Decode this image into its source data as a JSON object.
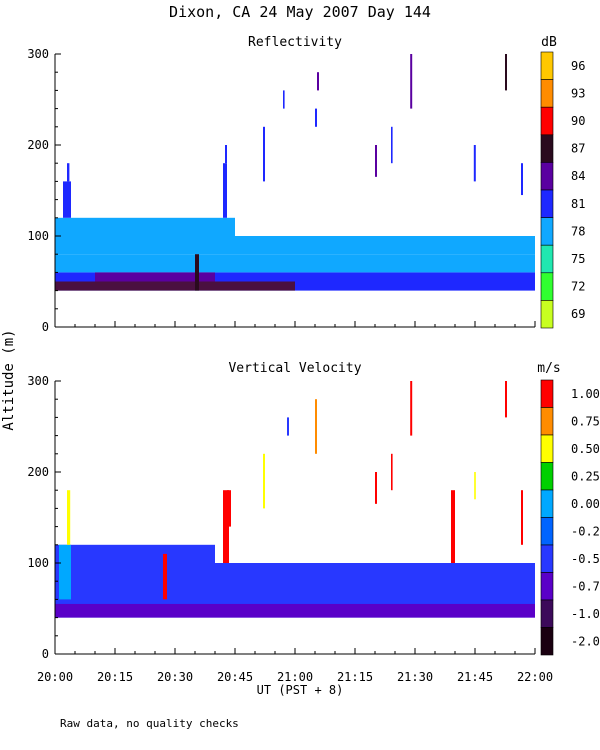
{
  "title": "Dixon, CA 24 May 2007  Day 144",
  "footnote": "Raw data, no quality checks",
  "chart_data": [
    {
      "type": "heatmap",
      "title": "Reflectivity",
      "xlabel": "UT  (PST + 8)",
      "ylabel": "Altitude (m)",
      "xlim": [
        0,
        120
      ],
      "ylim": [
        0,
        300
      ],
      "x_ticks": [
        0,
        15,
        30,
        45,
        60,
        75,
        90,
        105,
        120
      ],
      "x_tick_labels": [
        "20:00",
        "20:15",
        "20:30",
        "20:45",
        "21:00",
        "21:15",
        "21:30",
        "21:45",
        "22:00"
      ],
      "y_ticks": [
        0,
        100,
        200,
        300
      ],
      "y_tick_labels": [
        "0",
        "100",
        "200",
        "300"
      ],
      "colorbar": {
        "unit": "dB",
        "labels": [
          "96",
          "93",
          "90",
          "87",
          "84",
          "81",
          "78",
          "75",
          "72",
          "69"
        ],
        "colors": [
          "#ffc800",
          "#ff8c00",
          "#ff0000",
          "#2a0a1e",
          "#5a00a0",
          "#1e28ff",
          "#10a8ff",
          "#20e8b0",
          "#30ff30",
          "#c8ff20"
        ]
      },
      "cells": [
        {
          "x0": 0,
          "x1": 120,
          "y0": 40,
          "y1": 60,
          "color": "#1e28ff"
        },
        {
          "x0": 0,
          "x1": 120,
          "y0": 60,
          "y1": 80,
          "color": "#10a8ff"
        },
        {
          "x0": 0,
          "x1": 120,
          "y0": 80,
          "y1": 100,
          "color": "#10a8ff"
        },
        {
          "x0": 0,
          "x1": 45,
          "y0": 100,
          "y1": 120,
          "color": "#10a8ff"
        },
        {
          "x0": 0,
          "x1": 60,
          "y0": 40,
          "y1": 50,
          "color": "#4a1040"
        },
        {
          "x0": 10,
          "x1": 40,
          "y0": 50,
          "y1": 60,
          "color": "#5a00a0"
        },
        {
          "x0": 35,
          "x1": 36,
          "y0": 40,
          "y1": 80,
          "color": "#2a0a1e"
        },
        {
          "x0": 2,
          "x1": 4,
          "y0": 120,
          "y1": 160,
          "color": "#1e28ff"
        },
        {
          "x0": 3,
          "x1": 3.6,
          "y0": 160,
          "y1": 180,
          "color": "#1e28ff"
        },
        {
          "x0": 42,
          "x1": 43,
          "y0": 120,
          "y1": 180,
          "color": "#1e28ff"
        },
        {
          "x0": 42.5,
          "x1": 43,
          "y0": 180,
          "y1": 200,
          "color": "#1e28ff"
        },
        {
          "x0": 52,
          "x1": 52.5,
          "y0": 160,
          "y1": 220,
          "color": "#1e28ff"
        },
        {
          "x0": 57,
          "x1": 57.4,
          "y0": 240,
          "y1": 260,
          "color": "#1e28ff"
        },
        {
          "x0": 65,
          "x1": 65.5,
          "y0": 220,
          "y1": 240,
          "color": "#1e28ff"
        },
        {
          "x0": 65.5,
          "x1": 66,
          "y0": 260,
          "y1": 280,
          "color": "#5a00a0"
        },
        {
          "x0": 80,
          "x1": 80.5,
          "y0": 165,
          "y1": 200,
          "color": "#5a00a0"
        },
        {
          "x0": 84,
          "x1": 84.4,
          "y0": 180,
          "y1": 220,
          "color": "#1e28ff"
        },
        {
          "x0": 88.8,
          "x1": 89.3,
          "y0": 240,
          "y1": 300,
          "color": "#5a00a0"
        },
        {
          "x0": 104.7,
          "x1": 105.2,
          "y0": 160,
          "y1": 200,
          "color": "#1e28ff"
        },
        {
          "x0": 112.5,
          "x1": 113,
          "y0": 260,
          "y1": 300,
          "color": "#2a0a1e"
        },
        {
          "x0": 116.5,
          "x1": 117,
          "y0": 145,
          "y1": 180,
          "color": "#1e28ff"
        }
      ]
    },
    {
      "type": "heatmap",
      "title": "Vertical Velocity",
      "xlabel": "UT  (PST + 8)",
      "ylabel": "Altitude (m)",
      "xlim": [
        0,
        120
      ],
      "ylim": [
        0,
        300
      ],
      "x_ticks": [
        0,
        15,
        30,
        45,
        60,
        75,
        90,
        105,
        120
      ],
      "x_tick_labels": [
        "20:00",
        "20:15",
        "20:30",
        "20:45",
        "21:00",
        "21:15",
        "21:30",
        "21:45",
        "22:00"
      ],
      "y_ticks": [
        0,
        100,
        200,
        300
      ],
      "y_tick_labels": [
        "0",
        "100",
        "200",
        "300"
      ],
      "colorbar": {
        "unit": "m/s",
        "labels": [
          "1.00",
          "0.75",
          "0.50",
          "0.25",
          "0.00",
          "-0.25",
          "-0.50",
          "-0.75",
          "-1.00",
          "-2.00"
        ],
        "colors": [
          "#ff0000",
          "#ff8c00",
          "#ffff00",
          "#00d000",
          "#00a8ff",
          "#0064ff",
          "#2838ff",
          "#5a00c8",
          "#3c0a5a",
          "#1a0010"
        ]
      },
      "cells": [
        {
          "x0": 0,
          "x1": 120,
          "y0": 40,
          "y1": 100,
          "color": "#2838ff"
        },
        {
          "x0": 0,
          "x1": 120,
          "y0": 40,
          "y1": 55,
          "color": "#5a00c8"
        },
        {
          "x0": 0,
          "x1": 40,
          "y0": 100,
          "y1": 120,
          "color": "#2838ff"
        },
        {
          "x0": 1,
          "x1": 4,
          "y0": 60,
          "y1": 120,
          "color": "#00a8ff"
        },
        {
          "x0": 3,
          "x1": 3.8,
          "y0": 120,
          "y1": 180,
          "color": "#ffff00"
        },
        {
          "x0": 27,
          "x1": 28,
          "y0": 60,
          "y1": 110,
          "color": "#ff0000"
        },
        {
          "x0": 42,
          "x1": 43.5,
          "y0": 100,
          "y1": 180,
          "color": "#ff0000"
        },
        {
          "x0": 43,
          "x1": 44,
          "y0": 140,
          "y1": 180,
          "color": "#ff0000"
        },
        {
          "x0": 52,
          "x1": 52.5,
          "y0": 160,
          "y1": 220,
          "color": "#ffff00"
        },
        {
          "x0": 58,
          "x1": 58.5,
          "y0": 240,
          "y1": 260,
          "color": "#2838ff"
        },
        {
          "x0": 65,
          "x1": 65.5,
          "y0": 220,
          "y1": 280,
          "color": "#ff8c00"
        },
        {
          "x0": 80,
          "x1": 80.5,
          "y0": 165,
          "y1": 200,
          "color": "#ff0000"
        },
        {
          "x0": 84,
          "x1": 84.4,
          "y0": 180,
          "y1": 220,
          "color": "#ff0000"
        },
        {
          "x0": 88.8,
          "x1": 89.3,
          "y0": 240,
          "y1": 300,
          "color": "#ff0000"
        },
        {
          "x0": 99,
          "x1": 100,
          "y0": 100,
          "y1": 180,
          "color": "#ff0000"
        },
        {
          "x0": 104.8,
          "x1": 105.2,
          "y0": 170,
          "y1": 200,
          "color": "#ffff00"
        },
        {
          "x0": 112.5,
          "x1": 113,
          "y0": 260,
          "y1": 300,
          "color": "#ff0000"
        },
        {
          "x0": 116.5,
          "x1": 117,
          "y0": 120,
          "y1": 180,
          "color": "#ff0000"
        }
      ]
    }
  ]
}
